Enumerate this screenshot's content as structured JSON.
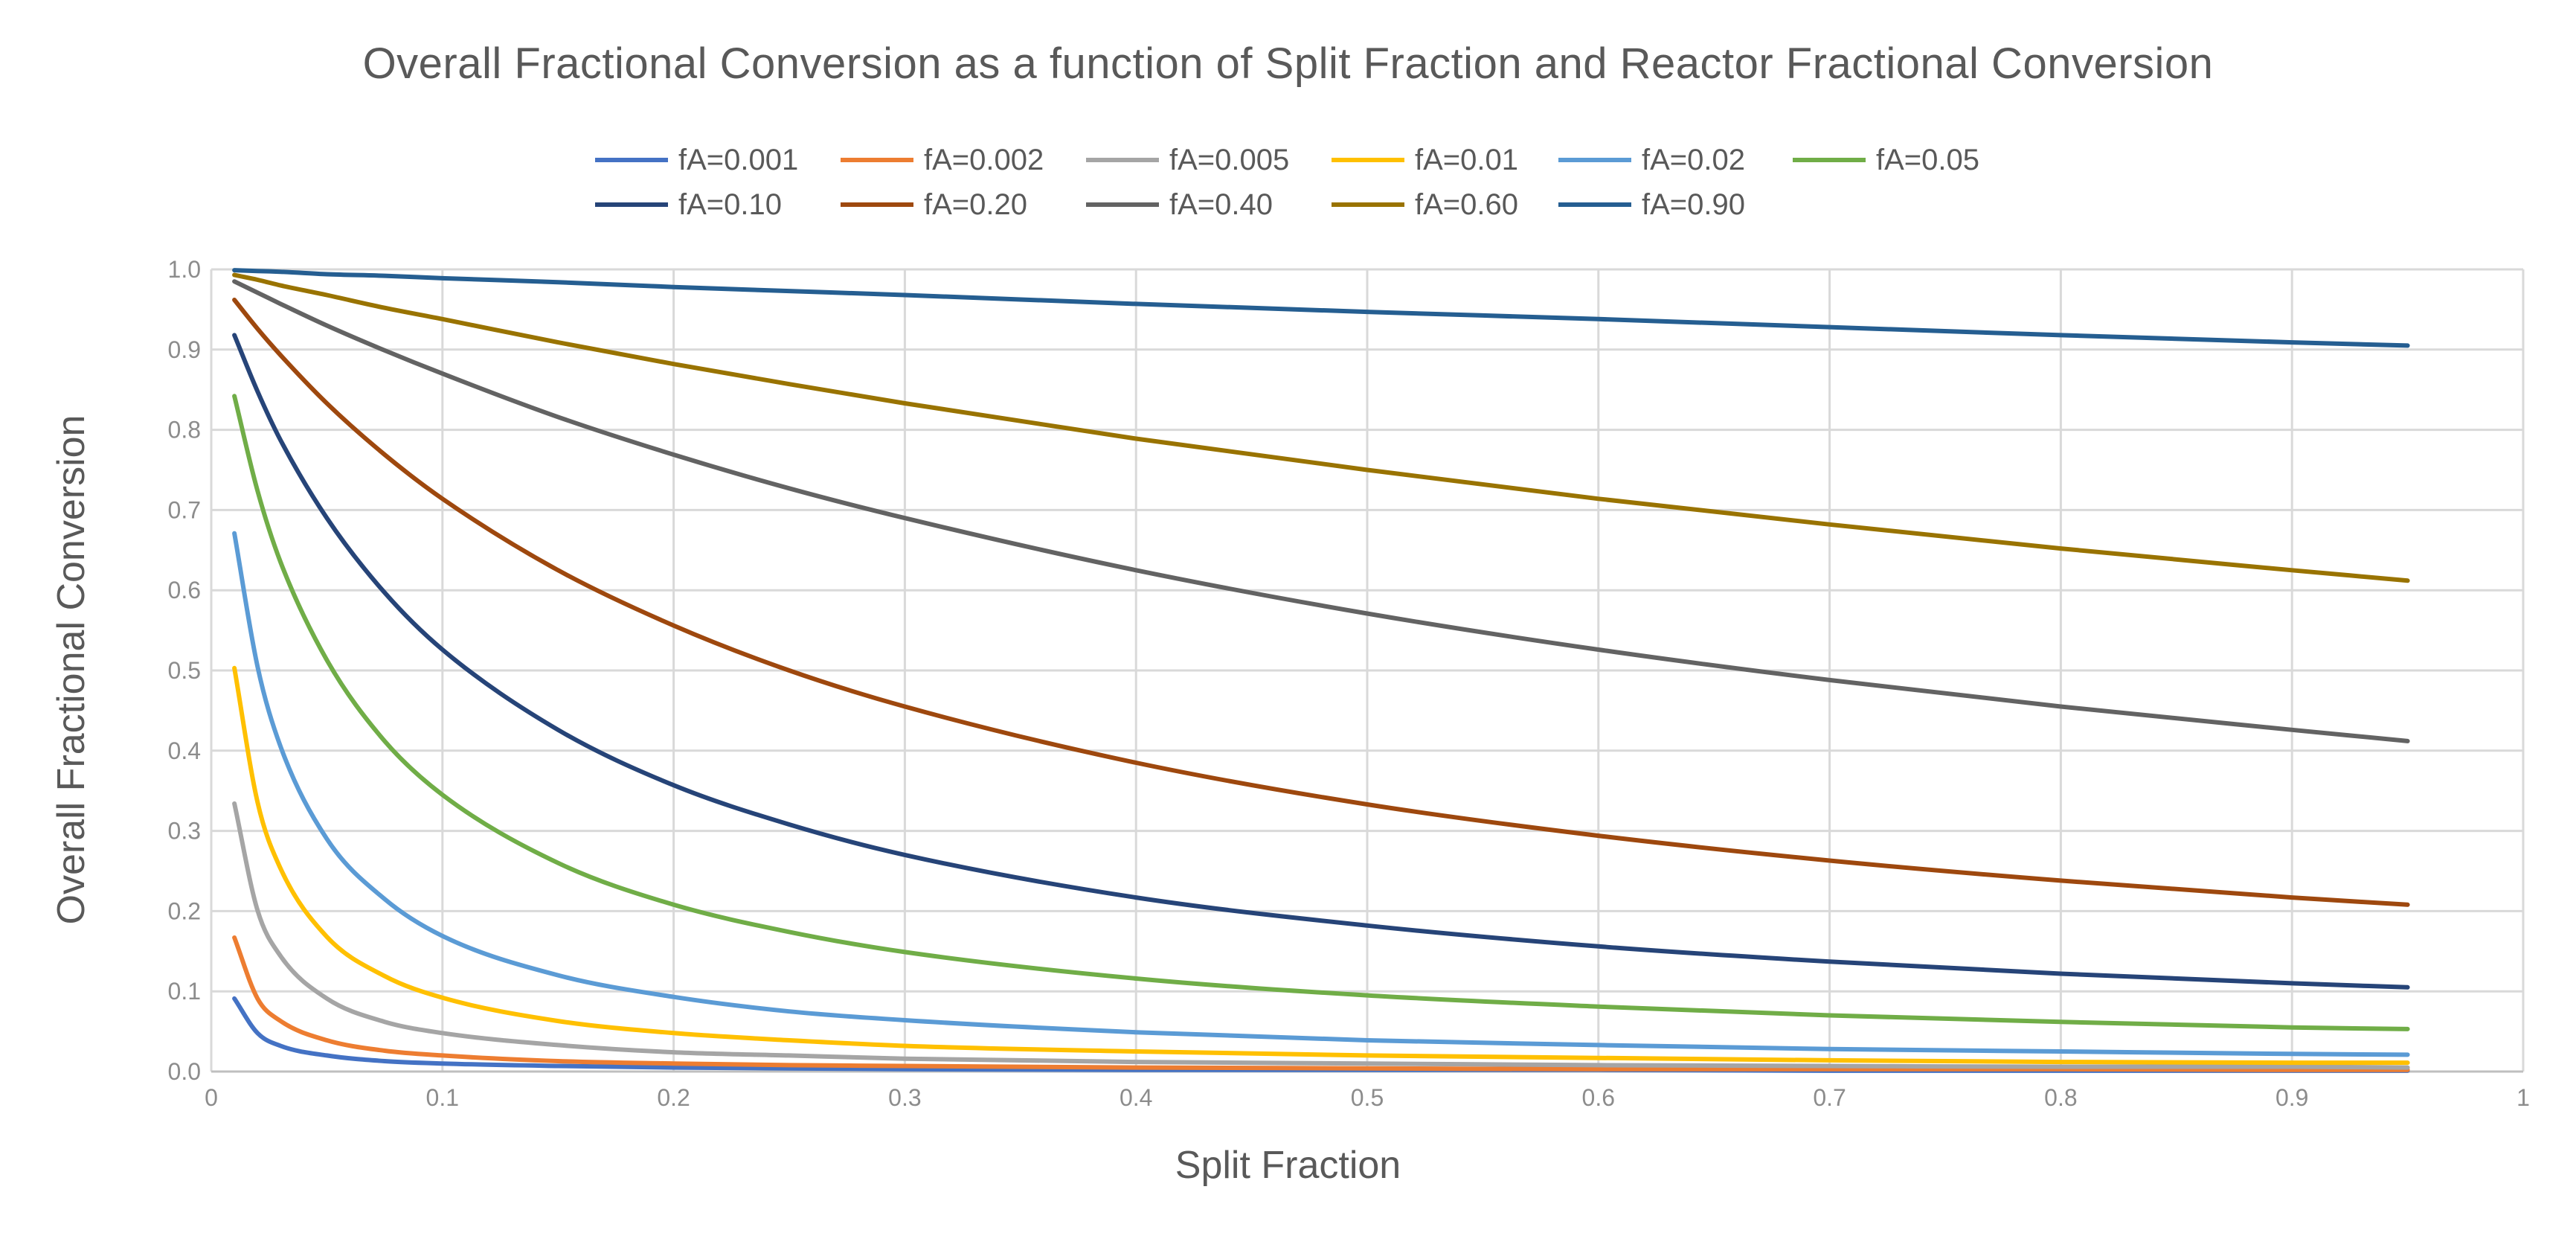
{
  "chart_data": {
    "type": "line",
    "title": "Overall Fractional Conversion as a function of Split Fraction and Reactor Fractional Conversion",
    "xlabel": "Split Fraction",
    "ylabel": "Overall Fractional Conversion",
    "xlim": [
      0,
      1
    ],
    "ylim": [
      0,
      1
    ],
    "x_ticks": [
      "0",
      "0.1",
      "0.2",
      "0.3",
      "0.4",
      "0.5",
      "0.6",
      "0.7",
      "0.8",
      "0.9",
      "1"
    ],
    "y_ticks": [
      "0.0",
      "0.1",
      "0.2",
      "0.3",
      "0.4",
      "0.5",
      "0.6",
      "0.7",
      "0.8",
      "0.9",
      "1.0"
    ],
    "grid": true,
    "legend_position": "top",
    "x": [
      0.01,
      0.02,
      0.03,
      0.05,
      0.075,
      0.1,
      0.15,
      0.2,
      0.25,
      0.3,
      0.4,
      0.5,
      0.6,
      0.7,
      0.8,
      0.9,
      0.95
    ],
    "series": [
      {
        "name": "fA=0.001",
        "color": "#4472C4",
        "values": [
          0.091,
          0.048,
          0.032,
          0.02,
          0.013,
          0.01,
          0.007,
          0.005,
          0.004,
          0.003,
          0.002,
          0.002,
          0.002,
          0.001,
          0.001,
          0.001,
          0.001
        ]
      },
      {
        "name": "fA=0.002",
        "color": "#ED7D31",
        "values": [
          0.167,
          0.091,
          0.063,
          0.039,
          0.026,
          0.02,
          0.013,
          0.01,
          0.008,
          0.007,
          0.005,
          0.004,
          0.003,
          0.003,
          0.003,
          0.002,
          0.002
        ]
      },
      {
        "name": "fA=0.005",
        "color": "#A5A5A5",
        "values": [
          0.334,
          0.201,
          0.144,
          0.091,
          0.062,
          0.048,
          0.033,
          0.024,
          0.02,
          0.016,
          0.012,
          0.01,
          0.008,
          0.007,
          0.006,
          0.006,
          0.005
        ]
      },
      {
        "name": "fA=0.01",
        "color": "#FFC000",
        "values": [
          0.503,
          0.336,
          0.253,
          0.168,
          0.119,
          0.092,
          0.063,
          0.048,
          0.039,
          0.032,
          0.025,
          0.02,
          0.017,
          0.014,
          0.012,
          0.011,
          0.011
        ]
      },
      {
        "name": "fA=0.02",
        "color": "#5B9BD5",
        "values": [
          0.671,
          0.505,
          0.405,
          0.29,
          0.215,
          0.169,
          0.12,
          0.093,
          0.075,
          0.064,
          0.049,
          0.039,
          0.033,
          0.028,
          0.025,
          0.022,
          0.021
        ]
      },
      {
        "name": "fA=0.05",
        "color": "#70AD47",
        "values": [
          0.842,
          0.724,
          0.635,
          0.513,
          0.412,
          0.345,
          0.26,
          0.208,
          0.174,
          0.149,
          0.116,
          0.095,
          0.081,
          0.07,
          0.062,
          0.055,
          0.053
        ]
      },
      {
        "name": "fA=0.10",
        "color": "#264478",
        "values": [
          0.918,
          0.848,
          0.787,
          0.69,
          0.597,
          0.526,
          0.426,
          0.357,
          0.308,
          0.27,
          0.217,
          0.182,
          0.156,
          0.137,
          0.122,
          0.11,
          0.105
        ]
      },
      {
        "name": "fA=0.20",
        "color": "#9E480E",
        "values": [
          0.962,
          0.926,
          0.893,
          0.833,
          0.769,
          0.714,
          0.625,
          0.556,
          0.5,
          0.455,
          0.385,
          0.333,
          0.294,
          0.263,
          0.238,
          0.217,
          0.208
        ]
      },
      {
        "name": "fA=0.40",
        "color": "#636363",
        "values": [
          0.985,
          0.971,
          0.957,
          0.93,
          0.899,
          0.87,
          0.816,
          0.769,
          0.727,
          0.69,
          0.625,
          0.571,
          0.526,
          0.488,
          0.455,
          0.426,
          0.412
        ]
      },
      {
        "name": "fA=0.60",
        "color": "#997300",
        "values": [
          0.993,
          0.987,
          0.98,
          0.968,
          0.952,
          0.938,
          0.909,
          0.882,
          0.857,
          0.833,
          0.789,
          0.75,
          0.714,
          0.682,
          0.652,
          0.625,
          0.612
        ]
      },
      {
        "name": "fA=0.90",
        "color": "#255E91",
        "values": [
          0.999,
          0.998,
          0.997,
          0.994,
          0.992,
          0.989,
          0.984,
          0.978,
          0.973,
          0.968,
          0.957,
          0.947,
          0.938,
          0.928,
          0.918,
          0.909,
          0.905
        ]
      }
    ]
  }
}
